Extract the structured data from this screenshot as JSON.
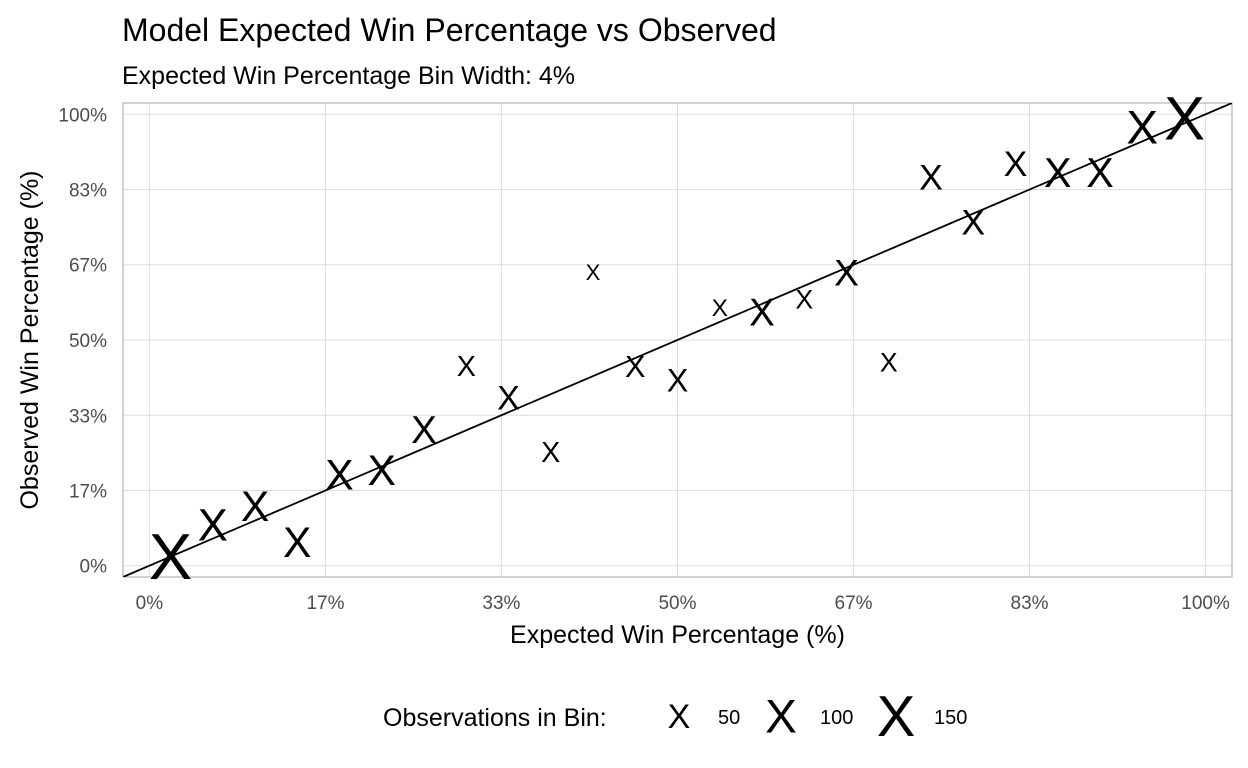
{
  "chart_data": {
    "type": "scatter",
    "title": "Model Expected Win Percentage vs Observed",
    "subtitle": "Expected Win Percentage Bin Width: 4%",
    "xlabel": "Expected Win Percentage (%)",
    "ylabel": "Observed Win Percentage (%)",
    "xlim": [
      -0.025,
      1.025
    ],
    "ylim": [
      -0.025,
      1.025
    ],
    "x_ticks": [
      0,
      0.1667,
      0.3333,
      0.5,
      0.6667,
      0.8333,
      1.0
    ],
    "x_tick_labels": [
      "0%",
      "17%",
      "33%",
      "50%",
      "67%",
      "83%",
      "100%"
    ],
    "y_ticks": [
      0,
      0.1667,
      0.3333,
      0.5,
      0.6667,
      0.8333,
      1.0
    ],
    "y_tick_labels": [
      "0%",
      "17%",
      "33%",
      "50%",
      "67%",
      "83%",
      "100%"
    ],
    "grid": true,
    "marker_glyph": "X",
    "reference_line": {
      "intercept": 0,
      "slope": 1
    },
    "points": [
      {
        "x": 0.02,
        "y": 0.02,
        "n": 190
      },
      {
        "x": 0.06,
        "y": 0.09,
        "n": 90
      },
      {
        "x": 0.1,
        "y": 0.13,
        "n": 80
      },
      {
        "x": 0.14,
        "y": 0.05,
        "n": 80
      },
      {
        "x": 0.18,
        "y": 0.2,
        "n": 80
      },
      {
        "x": 0.22,
        "y": 0.21,
        "n": 80
      },
      {
        "x": 0.26,
        "y": 0.3,
        "n": 65
      },
      {
        "x": 0.3,
        "y": 0.44,
        "n": 35
      },
      {
        "x": 0.34,
        "y": 0.37,
        "n": 50
      },
      {
        "x": 0.38,
        "y": 0.25,
        "n": 35
      },
      {
        "x": 0.42,
        "y": 0.65,
        "n": 20
      },
      {
        "x": 0.46,
        "y": 0.44,
        "n": 40
      },
      {
        "x": 0.5,
        "y": 0.41,
        "n": 45
      },
      {
        "x": 0.54,
        "y": 0.57,
        "n": 25
      },
      {
        "x": 0.58,
        "y": 0.56,
        "n": 65
      },
      {
        "x": 0.62,
        "y": 0.59,
        "n": 30
      },
      {
        "x": 0.66,
        "y": 0.65,
        "n": 60
      },
      {
        "x": 0.7,
        "y": 0.45,
        "n": 30
      },
      {
        "x": 0.74,
        "y": 0.86,
        "n": 55
      },
      {
        "x": 0.78,
        "y": 0.76,
        "n": 55
      },
      {
        "x": 0.82,
        "y": 0.89,
        "n": 55
      },
      {
        "x": 0.86,
        "y": 0.87,
        "n": 75
      },
      {
        "x": 0.9,
        "y": 0.87,
        "n": 75
      },
      {
        "x": 0.94,
        "y": 0.97,
        "n": 100
      },
      {
        "x": 0.98,
        "y": 0.99,
        "n": 170
      }
    ],
    "legend": {
      "title": "Observations in Bin:",
      "position": "bottom",
      "entries": [
        {
          "label": "50",
          "n": 50
        },
        {
          "label": "100",
          "n": 100
        },
        {
          "label": "150",
          "n": 150
        }
      ]
    },
    "colors": {
      "panel_border": "#b3b3b3",
      "grid": "#dedede",
      "marker": "#000000",
      "line": "#000000",
      "tick_text": "#4d4d4d"
    }
  }
}
